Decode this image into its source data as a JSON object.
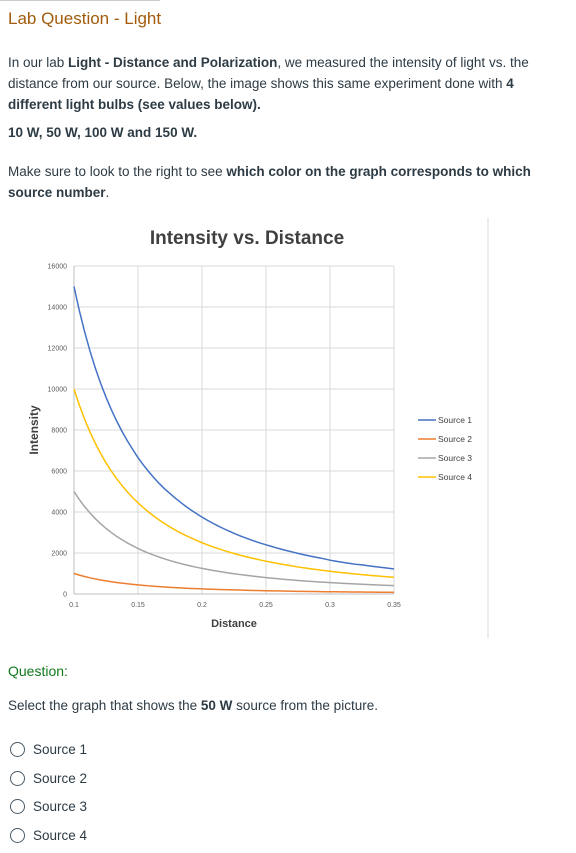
{
  "title": "Lab Question - Light",
  "intro": {
    "t1": "In our lab ",
    "b1": "Light - Distance and Polarization",
    "t2": ", we measured the intensity of light vs. the distance from our source.  Below, the image shows this same experiment done with ",
    "b2": "4 different light bulbs (see values below).",
    "t3": ""
  },
  "watts_line": "10 W, 50 W, 100 W and 150 W.",
  "hint": {
    "t1": "Make sure to look to the right to see ",
    "b1": "which color on the graph corresponds to which source number",
    "t2": "."
  },
  "chart_data": {
    "type": "line",
    "title": "Intensity vs. Distance",
    "xlabel": "Distance",
    "ylabel": "Intensity",
    "xlim": [
      0.1,
      0.35
    ],
    "ylim": [
      0,
      16000
    ],
    "xticks": [
      "0.1",
      "0.15",
      "0.2",
      "0.25",
      "0.3",
      "0.35"
    ],
    "yticks": [
      "0",
      "2000",
      "4000",
      "6000",
      "8000",
      "10000",
      "12000",
      "14000",
      "16000"
    ],
    "grid": true,
    "legend_position": "right",
    "series": [
      {
        "name": "Source 1",
        "color": "#4472c4",
        "x": [
          0.1,
          0.125,
          0.15,
          0.175,
          0.2,
          0.225,
          0.25,
          0.275,
          0.3,
          0.325,
          0.35
        ],
        "values": [
          15000,
          9600,
          6650,
          4900,
          3750,
          2960,
          2400,
          1980,
          1650,
          1420,
          1220
        ]
      },
      {
        "name": "Source 2",
        "color": "#ed7d31",
        "x": [
          0.1,
          0.125,
          0.15,
          0.175,
          0.2,
          0.225,
          0.25,
          0.275,
          0.3,
          0.325,
          0.35
        ],
        "values": [
          1000,
          640,
          445,
          325,
          250,
          200,
          160,
          130,
          110,
          95,
          80
        ]
      },
      {
        "name": "Source 3",
        "color": "#a5a5a5",
        "x": [
          0.1,
          0.125,
          0.15,
          0.175,
          0.2,
          0.225,
          0.25,
          0.275,
          0.3,
          0.325,
          0.35
        ],
        "values": [
          5000,
          3200,
          2220,
          1630,
          1250,
          990,
          800,
          660,
          555,
          475,
          410
        ]
      },
      {
        "name": "Source 4",
        "color": "#ffc000",
        "x": [
          0.1,
          0.125,
          0.15,
          0.175,
          0.2,
          0.225,
          0.25,
          0.275,
          0.3,
          0.325,
          0.35
        ],
        "values": [
          10000,
          6400,
          4450,
          3270,
          2500,
          1975,
          1600,
          1320,
          1110,
          945,
          815
        ]
      }
    ]
  },
  "question": {
    "label": "Question:",
    "prompt_pre": "Select the graph that shows the ",
    "prompt_bold": "50 W",
    "prompt_post": " source from the picture.",
    "options": [
      "Source 1",
      "Source 2",
      "Source 3",
      "Source 4"
    ]
  }
}
